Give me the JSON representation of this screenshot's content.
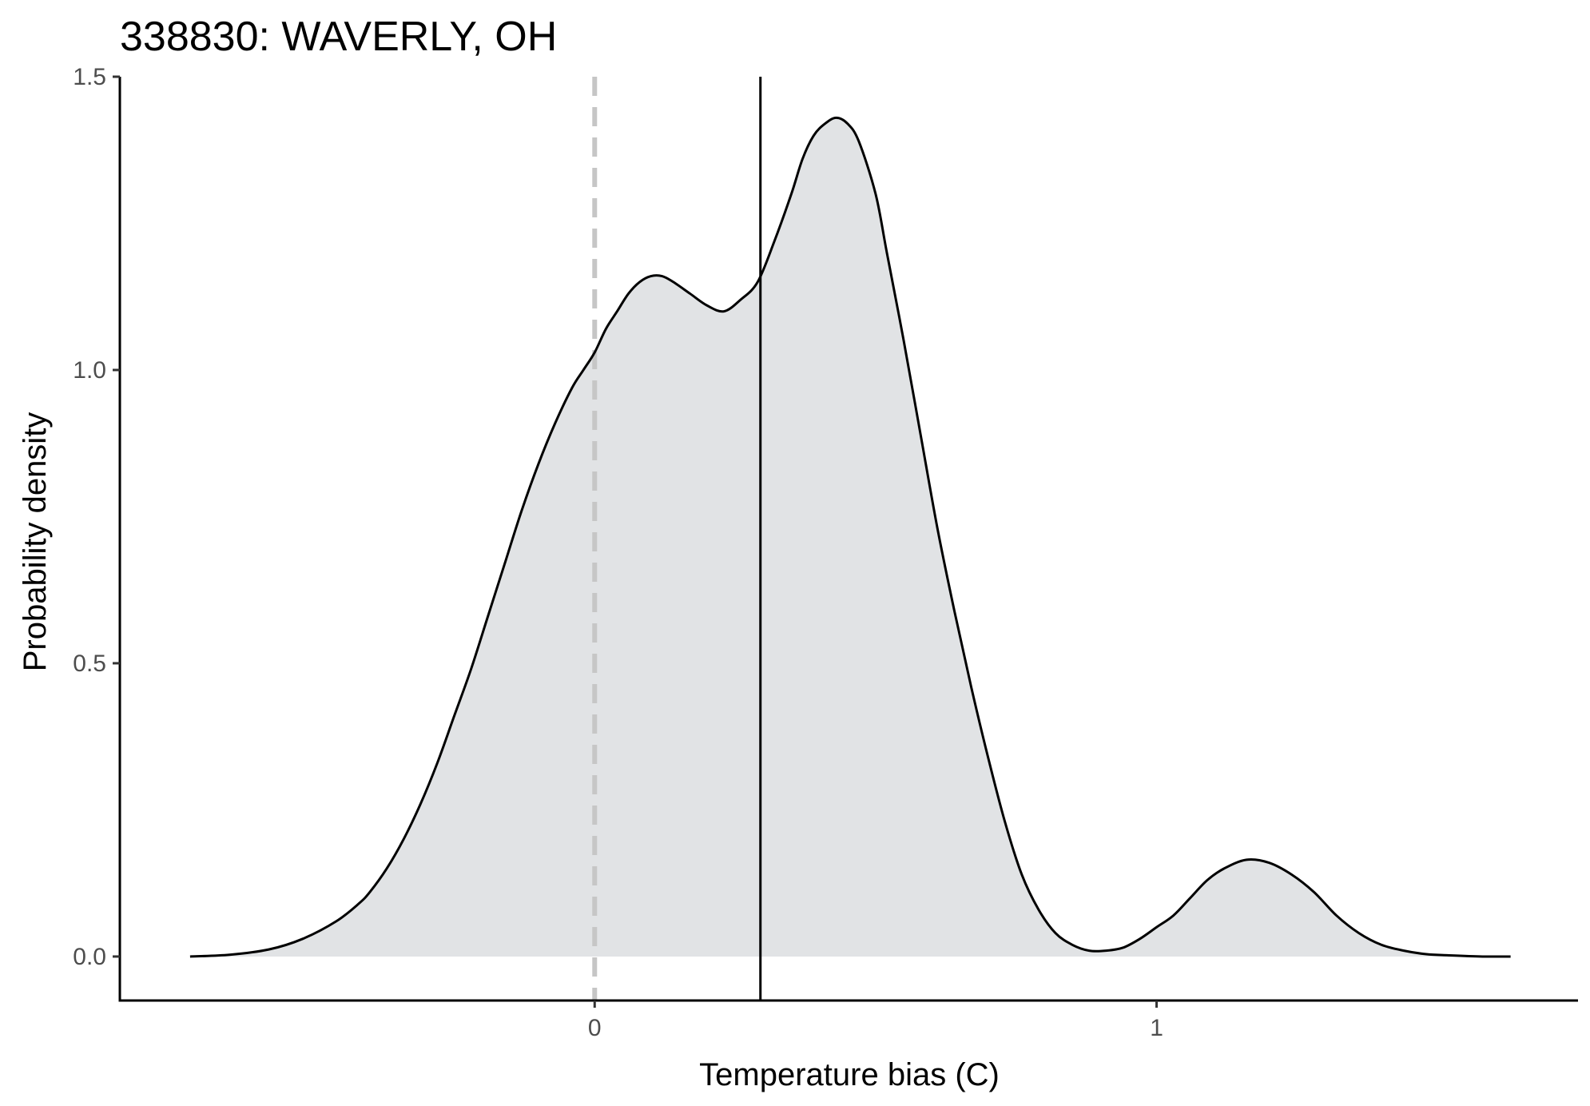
{
  "chart_data": {
    "type": "area",
    "title": "338830: WAVERLY, OH",
    "xlabel": "Temperature bias (C)",
    "ylabel": "Probability density",
    "xlim": [
      -0.845,
      1.75
    ],
    "ylim": [
      -0.075,
      1.5
    ],
    "x_ticks": [
      {
        "value": 0,
        "label": "0"
      },
      {
        "value": 1,
        "label": "1"
      }
    ],
    "y_ticks": [
      {
        "value": 0.0,
        "label": "0.0"
      },
      {
        "value": 0.5,
        "label": "0.5"
      },
      {
        "value": 1.0,
        "label": "1.0"
      },
      {
        "value": 1.5,
        "label": "1.5"
      }
    ],
    "grid": false,
    "legend": "none",
    "fill_color": "#e1e3e5",
    "line_color": "#000000",
    "reference_lines": [
      {
        "name": "zero",
        "x": 0,
        "style": "dashed",
        "color": "#c6c6c6"
      },
      {
        "name": "mean",
        "x": 0.295,
        "style": "solid",
        "color": "#000000"
      }
    ],
    "x": [
      -0.72,
      -0.65,
      -0.58,
      -0.52,
      -0.46,
      -0.42,
      -0.4,
      -0.37,
      -0.34,
      -0.31,
      -0.28,
      -0.25,
      -0.22,
      -0.19,
      -0.16,
      -0.13,
      -0.1,
      -0.07,
      -0.04,
      -0.02,
      0.0,
      0.02,
      0.04,
      0.06,
      0.08,
      0.1,
      0.12,
      0.14,
      0.17,
      0.2,
      0.23,
      0.26,
      0.29,
      0.32,
      0.35,
      0.37,
      0.39,
      0.41,
      0.43,
      0.45,
      0.47,
      0.5,
      0.52,
      0.55,
      0.58,
      0.61,
      0.64,
      0.67,
      0.7,
      0.73,
      0.76,
      0.79,
      0.82,
      0.85,
      0.88,
      0.91,
      0.94,
      0.97,
      1.0,
      1.03,
      1.06,
      1.09,
      1.12,
      1.16,
      1.2,
      1.24,
      1.28,
      1.32,
      1.36,
      1.4,
      1.44,
      1.48,
      1.52,
      1.58,
      1.63
    ],
    "y": [
      0.0,
      0.003,
      0.012,
      0.03,
      0.06,
      0.09,
      0.11,
      0.15,
      0.2,
      0.26,
      0.33,
      0.41,
      0.49,
      0.58,
      0.67,
      0.76,
      0.84,
      0.91,
      0.97,
      1.0,
      1.03,
      1.07,
      1.1,
      1.13,
      1.15,
      1.16,
      1.16,
      1.15,
      1.13,
      1.11,
      1.1,
      1.12,
      1.15,
      1.22,
      1.3,
      1.36,
      1.4,
      1.42,
      1.43,
      1.42,
      1.39,
      1.3,
      1.2,
      1.05,
      0.89,
      0.73,
      0.59,
      0.46,
      0.34,
      0.23,
      0.14,
      0.08,
      0.04,
      0.02,
      0.01,
      0.01,
      0.015,
      0.03,
      0.05,
      0.07,
      0.1,
      0.13,
      0.15,
      0.165,
      0.16,
      0.14,
      0.11,
      0.07,
      0.04,
      0.02,
      0.01,
      0.004,
      0.002,
      0.0,
      0.0
    ]
  }
}
